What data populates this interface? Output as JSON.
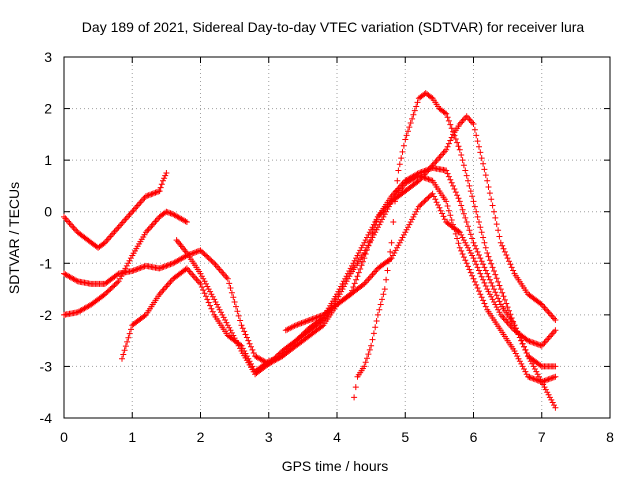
{
  "chart_data": {
    "type": "scatter",
    "title": "Day 189 of 2021, Sidereal Day-to-day VTEC variation (SDTVAR) for receiver lura",
    "xlabel": "GPS time / hours",
    "ylabel": "SDTVAR / TECUs",
    "xlim": [
      0,
      8
    ],
    "ylim": [
      -4,
      3
    ],
    "x_ticks": [
      0,
      1,
      2,
      3,
      4,
      5,
      6,
      7,
      8
    ],
    "y_ticks": [
      -4,
      -3,
      -2,
      -1,
      0,
      1,
      2,
      3
    ],
    "grid": true,
    "marker": "+",
    "color": "#ff0000",
    "series": [
      {
        "name": "track-1",
        "points": [
          [
            0.0,
            -0.1
          ],
          [
            0.2,
            -0.4
          ],
          [
            0.4,
            -0.6
          ],
          [
            0.5,
            -0.7
          ],
          [
            0.6,
            -0.6
          ],
          [
            0.8,
            -0.3
          ],
          [
            1.0,
            0.0
          ],
          [
            1.2,
            0.3
          ],
          [
            1.4,
            0.4
          ],
          [
            1.45,
            0.6
          ],
          [
            1.5,
            0.75
          ]
        ]
      },
      {
        "name": "track-2",
        "points": [
          [
            0.0,
            -2.0
          ],
          [
            0.2,
            -1.95
          ],
          [
            0.4,
            -1.8
          ],
          [
            0.6,
            -1.6
          ],
          [
            0.8,
            -1.35
          ],
          [
            1.0,
            -0.85
          ],
          [
            1.2,
            -0.4
          ],
          [
            1.4,
            -0.1
          ],
          [
            1.5,
            0.0
          ],
          [
            1.6,
            -0.05
          ],
          [
            1.8,
            -0.2
          ]
        ]
      },
      {
        "name": "track-3",
        "points": [
          [
            0.0,
            -1.2
          ],
          [
            0.2,
            -1.35
          ],
          [
            0.4,
            -1.4
          ],
          [
            0.6,
            -1.4
          ],
          [
            0.8,
            -1.2
          ],
          [
            1.0,
            -1.15
          ],
          [
            1.2,
            -1.05
          ],
          [
            1.4,
            -1.1
          ],
          [
            1.6,
            -1.0
          ],
          [
            1.8,
            -0.85
          ],
          [
            2.0,
            -0.75
          ],
          [
            2.2,
            -1.0
          ],
          [
            2.4,
            -1.3
          ],
          [
            2.6,
            -2.2
          ],
          [
            2.8,
            -2.8
          ],
          [
            3.0,
            -2.95
          ],
          [
            3.2,
            -2.8
          ],
          [
            3.4,
            -2.5
          ],
          [
            3.6,
            -2.3
          ],
          [
            3.8,
            -2.1
          ],
          [
            4.0,
            -1.7
          ],
          [
            4.2,
            -1.2
          ],
          [
            4.4,
            -0.8
          ],
          [
            4.6,
            -0.3
          ],
          [
            4.8,
            0.2
          ],
          [
            5.0,
            0.55
          ],
          [
            5.2,
            0.7
          ],
          [
            5.4,
            0.6
          ],
          [
            5.6,
            0.2
          ],
          [
            5.8,
            -0.7
          ],
          [
            6.0,
            -1.3
          ],
          [
            6.2,
            -1.9
          ],
          [
            6.4,
            -2.3
          ],
          [
            6.6,
            -2.7
          ],
          [
            6.8,
            -3.2
          ],
          [
            7.0,
            -3.3
          ],
          [
            7.2,
            -3.2
          ]
        ]
      },
      {
        "name": "track-4",
        "points": [
          [
            0.85,
            -2.85
          ],
          [
            1.0,
            -2.2
          ],
          [
            1.2,
            -2.0
          ],
          [
            1.4,
            -1.6
          ],
          [
            1.6,
            -1.3
          ],
          [
            1.8,
            -1.1
          ],
          [
            2.0,
            -1.4
          ],
          [
            2.2,
            -2.0
          ],
          [
            2.4,
            -2.4
          ],
          [
            2.6,
            -2.6
          ],
          [
            2.8,
            -3.1
          ],
          [
            3.0,
            -2.9
          ],
          [
            3.2,
            -2.8
          ],
          [
            3.4,
            -2.6
          ],
          [
            3.6,
            -2.4
          ],
          [
            3.8,
            -2.2
          ],
          [
            4.0,
            -1.8
          ],
          [
            4.2,
            -1.6
          ],
          [
            4.4,
            -1.4
          ],
          [
            4.6,
            -1.1
          ],
          [
            4.8,
            -0.9
          ],
          [
            5.0,
            -0.4
          ],
          [
            5.2,
            0.1
          ],
          [
            5.4,
            0.35
          ],
          [
            5.6,
            -0.2
          ],
          [
            5.8,
            -0.4
          ],
          [
            6.0,
            -0.9
          ],
          [
            6.2,
            -1.5
          ],
          [
            6.4,
            -2.0
          ],
          [
            6.6,
            -2.3
          ],
          [
            6.8,
            -2.5
          ],
          [
            7.0,
            -2.6
          ],
          [
            7.2,
            -2.3
          ]
        ]
      },
      {
        "name": "track-5",
        "points": [
          [
            1.65,
            -0.55
          ],
          [
            1.8,
            -0.8
          ],
          [
            2.0,
            -1.2
          ],
          [
            2.2,
            -1.7
          ],
          [
            2.4,
            -2.2
          ],
          [
            2.6,
            -2.7
          ],
          [
            2.8,
            -3.15
          ],
          [
            3.0,
            -2.95
          ],
          [
            3.2,
            -2.7
          ],
          [
            3.4,
            -2.5
          ],
          [
            3.6,
            -2.25
          ],
          [
            3.8,
            -2.05
          ],
          [
            4.0,
            -1.6
          ],
          [
            4.2,
            -1.1
          ],
          [
            4.4,
            -0.6
          ],
          [
            4.6,
            -0.1
          ],
          [
            4.8,
            0.3
          ],
          [
            5.0,
            0.6
          ],
          [
            5.2,
            0.75
          ],
          [
            5.4,
            0.85
          ],
          [
            5.6,
            0.8
          ],
          [
            5.8,
            0.2
          ],
          [
            6.0,
            -0.6
          ],
          [
            6.2,
            -1.2
          ],
          [
            6.4,
            -1.8
          ],
          [
            6.6,
            -2.2
          ],
          [
            6.8,
            -2.8
          ],
          [
            7.0,
            -3.3
          ],
          [
            7.2,
            -3.8
          ]
        ]
      },
      {
        "name": "track-6",
        "points": [
          [
            3.25,
            -2.3
          ],
          [
            3.4,
            -2.2
          ],
          [
            3.6,
            -2.1
          ],
          [
            3.8,
            -2.0
          ],
          [
            4.0,
            -1.8
          ],
          [
            4.2,
            -1.6
          ],
          [
            4.4,
            -0.9
          ],
          [
            4.6,
            -0.1
          ],
          [
            4.8,
            0.2
          ],
          [
            5.0,
            0.4
          ],
          [
            5.2,
            0.6
          ],
          [
            5.4,
            0.9
          ],
          [
            5.6,
            1.2
          ],
          [
            5.7,
            1.5
          ],
          [
            5.8,
            1.7
          ],
          [
            5.9,
            1.85
          ],
          [
            6.0,
            1.7
          ],
          [
            6.2,
            0.6
          ],
          [
            6.4,
            -0.6
          ],
          [
            6.6,
            -1.2
          ],
          [
            6.8,
            -1.6
          ],
          [
            7.0,
            -1.8
          ],
          [
            7.2,
            -2.1
          ]
        ]
      },
      {
        "name": "track-7",
        "points": [
          [
            4.25,
            -3.6
          ],
          [
            4.3,
            -3.2
          ],
          [
            4.4,
            -3.0
          ],
          [
            4.5,
            -2.6
          ],
          [
            4.6,
            -2.0
          ],
          [
            4.7,
            -1.5
          ],
          [
            4.8,
            -0.6
          ],
          [
            4.85,
            0.2
          ],
          [
            4.9,
            0.8
          ],
          [
            5.0,
            1.4
          ],
          [
            5.1,
            1.8
          ],
          [
            5.2,
            2.2
          ],
          [
            5.3,
            2.3
          ],
          [
            5.4,
            2.2
          ],
          [
            5.5,
            2.0
          ],
          [
            5.6,
            1.9
          ],
          [
            5.8,
            1.2
          ],
          [
            6.0,
            0.2
          ],
          [
            6.2,
            -0.8
          ],
          [
            6.4,
            -1.5
          ],
          [
            6.6,
            -2.2
          ],
          [
            6.8,
            -2.8
          ],
          [
            7.0,
            -3.0
          ],
          [
            7.2,
            -3.0
          ]
        ]
      }
    ]
  }
}
